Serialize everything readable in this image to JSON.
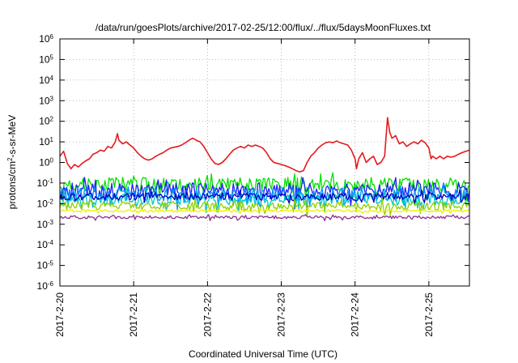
{
  "chart_data": {
    "type": "line",
    "title": "/data/run/goesPlots/archive/2017-02-25/12:00/flux/../flux/5daysMoonFluxes.txt",
    "xlabel": "Coordinated Universal Time (UTC)",
    "ylabel_parts": {
      "base": "protons/cm",
      "sup": "2",
      "rest": "-s-sr-MeV"
    },
    "y_scale": "log",
    "ylim": [
      1e-06,
      1000000.0
    ],
    "xlim": [
      0,
      5.55
    ],
    "grid": true,
    "legend": "none",
    "x_ticks": [
      {
        "value": 0,
        "label": "2017-2-20"
      },
      {
        "value": 1,
        "label": "2017-2-21"
      },
      {
        "value": 2,
        "label": "2017-2-22"
      },
      {
        "value": 3,
        "label": "2017-2-23"
      },
      {
        "value": 4,
        "label": "2017-2-24"
      },
      {
        "value": 5,
        "label": "2017-2-25"
      }
    ],
    "y_ticks": [
      {
        "exp": -6,
        "base": "10",
        "sup": "-6"
      },
      {
        "exp": -5,
        "base": "10",
        "sup": "-5"
      },
      {
        "exp": -4,
        "base": "10",
        "sup": "-4"
      },
      {
        "exp": -3,
        "base": "10",
        "sup": "-3"
      },
      {
        "exp": -2,
        "base": "10",
        "sup": "-2"
      },
      {
        "exp": -1,
        "base": "10",
        "sup": "-1"
      },
      {
        "exp": 0,
        "base": "10",
        "sup": "0"
      },
      {
        "exp": 1,
        "base": "10",
        "sup": "1"
      },
      {
        "exp": 2,
        "base": "10",
        "sup": "2"
      },
      {
        "exp": 3,
        "base": "10",
        "sup": "3"
      },
      {
        "exp": 4,
        "base": "10",
        "sup": "4"
      },
      {
        "exp": 5,
        "base": "10",
        "sup": "5"
      },
      {
        "exp": 6,
        "base": "10",
        "sup": "6"
      }
    ],
    "series": [
      {
        "color": "#e31a1c",
        "points": [
          [
            0.0,
            2.0
          ],
          [
            0.05,
            3.5
          ],
          [
            0.1,
            0.9
          ],
          [
            0.15,
            0.5
          ],
          [
            0.2,
            0.8
          ],
          [
            0.25,
            0.6
          ],
          [
            0.3,
            0.9
          ],
          [
            0.35,
            1.2
          ],
          [
            0.4,
            1.5
          ],
          [
            0.45,
            2.5
          ],
          [
            0.5,
            3.0
          ],
          [
            0.55,
            4.0
          ],
          [
            0.6,
            3.5
          ],
          [
            0.65,
            6.0
          ],
          [
            0.7,
            5.0
          ],
          [
            0.75,
            10
          ],
          [
            0.78,
            25
          ],
          [
            0.8,
            12
          ],
          [
            0.85,
            8
          ],
          [
            0.9,
            10
          ],
          [
            0.95,
            7
          ],
          [
            1.0,
            5
          ],
          [
            1.05,
            3
          ],
          [
            1.1,
            2
          ],
          [
            1.15,
            1.5
          ],
          [
            1.2,
            1.3
          ],
          [
            1.25,
            1.5
          ],
          [
            1.3,
            2
          ],
          [
            1.35,
            2.5
          ],
          [
            1.4,
            3
          ],
          [
            1.45,
            4
          ],
          [
            1.5,
            5
          ],
          [
            1.55,
            5.5
          ],
          [
            1.6,
            6
          ],
          [
            1.65,
            7
          ],
          [
            1.7,
            9
          ],
          [
            1.75,
            12
          ],
          [
            1.8,
            15
          ],
          [
            1.85,
            12
          ],
          [
            1.9,
            10
          ],
          [
            1.95,
            6
          ],
          [
            2.0,
            3
          ],
          [
            2.05,
            1.5
          ],
          [
            2.1,
            0.9
          ],
          [
            2.15,
            0.8
          ],
          [
            2.2,
            1.0
          ],
          [
            2.25,
            1.5
          ],
          [
            2.3,
            2.5
          ],
          [
            2.35,
            4
          ],
          [
            2.4,
            5
          ],
          [
            2.45,
            6
          ],
          [
            2.5,
            5
          ],
          [
            2.55,
            7
          ],
          [
            2.6,
            6
          ],
          [
            2.65,
            7
          ],
          [
            2.7,
            6
          ],
          [
            2.75,
            5
          ],
          [
            2.8,
            3
          ],
          [
            2.85,
            1.5
          ],
          [
            2.9,
            1.0
          ],
          [
            2.95,
            0.9
          ],
          [
            3.0,
            0.8
          ],
          [
            3.05,
            0.7
          ],
          [
            3.1,
            0.6
          ],
          [
            3.15,
            0.5
          ],
          [
            3.2,
            0.4
          ],
          [
            3.25,
            0.35
          ],
          [
            3.3,
            0.4
          ],
          [
            3.35,
            1
          ],
          [
            3.4,
            2
          ],
          [
            3.45,
            3
          ],
          [
            3.5,
            5
          ],
          [
            3.55,
            7
          ],
          [
            3.6,
            9
          ],
          [
            3.65,
            10
          ],
          [
            3.7,
            9
          ],
          [
            3.75,
            11
          ],
          [
            3.8,
            9
          ],
          [
            3.85,
            8
          ],
          [
            3.9,
            7
          ],
          [
            3.95,
            4
          ],
          [
            4.0,
            1.5
          ],
          [
            4.02,
            0.5
          ],
          [
            4.05,
            1.5
          ],
          [
            4.1,
            3
          ],
          [
            4.15,
            1
          ],
          [
            4.2,
            1.5
          ],
          [
            4.25,
            2
          ],
          [
            4.3,
            0.8
          ],
          [
            4.35,
            1
          ],
          [
            4.4,
            2
          ],
          [
            4.44,
            150
          ],
          [
            4.47,
            30
          ],
          [
            4.5,
            15
          ],
          [
            4.55,
            20
          ],
          [
            4.6,
            8
          ],
          [
            4.65,
            10
          ],
          [
            4.7,
            6
          ],
          [
            4.75,
            8
          ],
          [
            4.8,
            10
          ],
          [
            4.85,
            8
          ],
          [
            4.9,
            12
          ],
          [
            4.95,
            9
          ],
          [
            5.0,
            5
          ],
          [
            5.03,
            1.5
          ],
          [
            5.05,
            2
          ],
          [
            5.1,
            1.5
          ],
          [
            5.15,
            2
          ],
          [
            5.2,
            1.5
          ],
          [
            5.25,
            2
          ],
          [
            5.3,
            1.8
          ],
          [
            5.35,
            2
          ],
          [
            5.4,
            2.5
          ],
          [
            5.45,
            3
          ],
          [
            5.5,
            3.5
          ],
          [
            5.55,
            4
          ]
        ]
      },
      {
        "color": "#00e000",
        "base": 0.09,
        "amp": 0.55,
        "seed": 7
      },
      {
        "color": "#2020ff",
        "base": 0.045,
        "amp": 0.6,
        "seed": 13
      },
      {
        "color": "#0090ff",
        "base": 0.028,
        "amp": 0.55,
        "seed": 29
      },
      {
        "color": "#00c8c8",
        "base": 0.016,
        "amp": 0.5,
        "seed": 41
      },
      {
        "color": "#0000c0",
        "base": 0.022,
        "amp": 0.3,
        "seed": 53
      },
      {
        "color": "#90d000",
        "base": 0.008,
        "amp": 0.35,
        "seed": 61
      },
      {
        "color": "#f0f000",
        "base": 0.0045,
        "amp": 0.1,
        "seed": 71
      },
      {
        "color": "#8e2f8e",
        "base": 0.0022,
        "amp": 0.12,
        "seed": 83
      }
    ]
  }
}
